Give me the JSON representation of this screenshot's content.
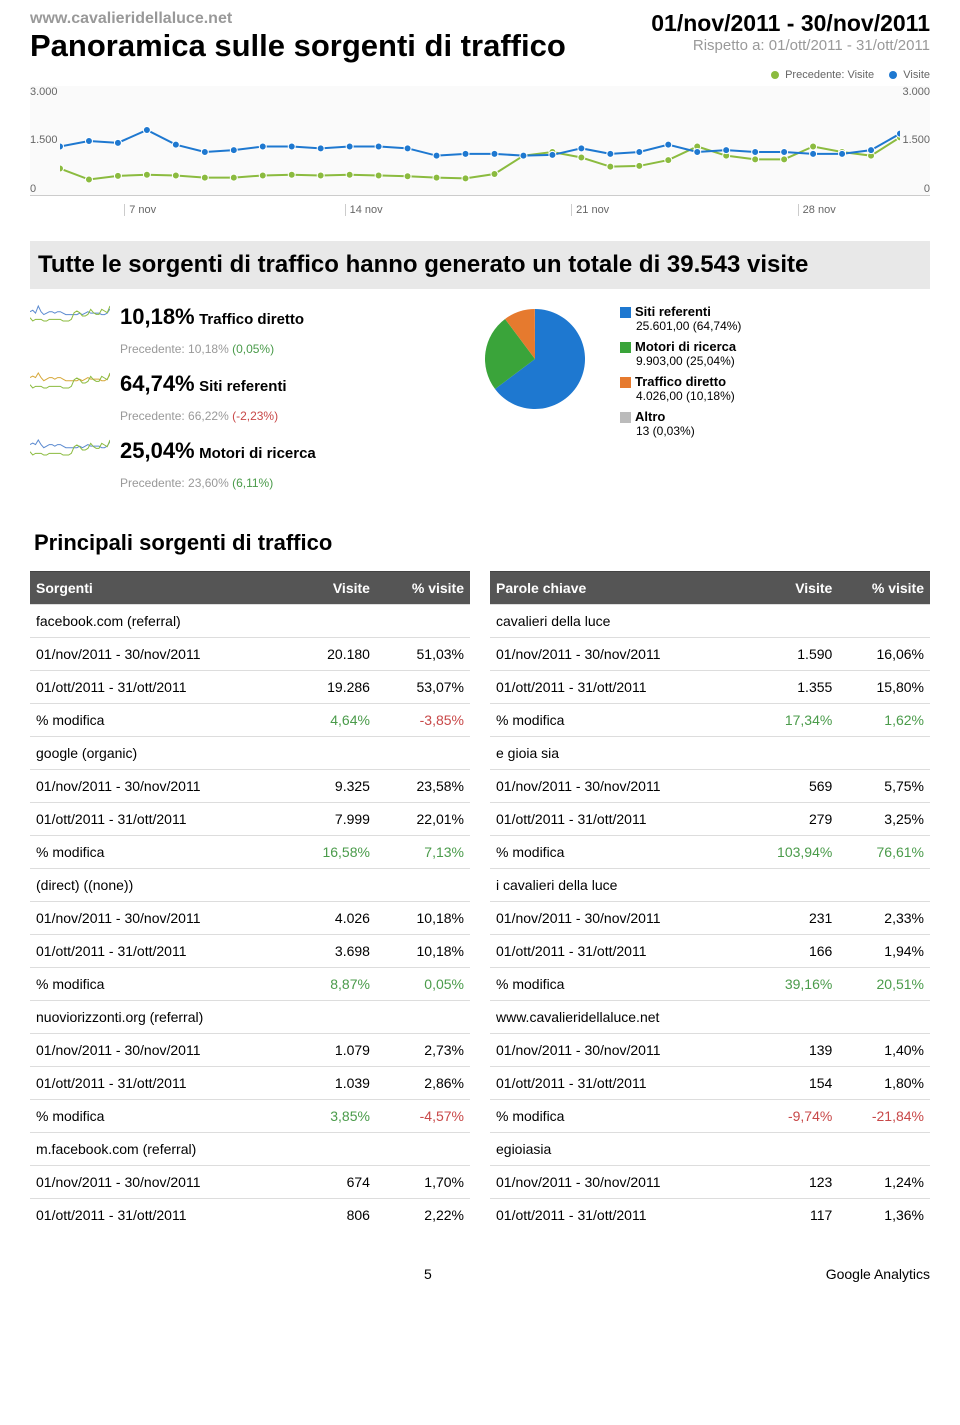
{
  "site_url": "www.cavalieridellaluce.net",
  "page_title": "Panoramica sulle sorgenti di traffico",
  "date_range": "01/nov/2011 - 30/nov/2011",
  "date_compare": "Rispetto a: 01/ott/2011 - 31/ott/2011",
  "top_legend": {
    "prev_label": "Precedente: Visite",
    "prev_color": "#8bbb3f",
    "curr_label": "Visite",
    "curr_color": "#1e78d0"
  },
  "line_chart": {
    "ylim": [
      0,
      3000
    ],
    "yticks": [
      "3.000",
      "1.500",
      "0"
    ],
    "xticks": [
      "7 nov",
      "14 nov",
      "21 nov",
      "28 nov"
    ],
    "bg": "#fafafa",
    "prev_color": "#8bbb3f",
    "curr_color": "#1e78d0",
    "marker_radius": 3.5,
    "prev_series": [
      750,
      450,
      550,
      580,
      560,
      500,
      500,
      560,
      580,
      560,
      580,
      560,
      540,
      500,
      480,
      600,
      1100,
      1200,
      1050,
      800,
      820,
      980,
      1350,
      1100,
      1000,
      1000,
      1350,
      1200,
      1100,
      1600
    ],
    "curr_series": [
      1350,
      1500,
      1450,
      1800,
      1400,
      1200,
      1250,
      1350,
      1350,
      1300,
      1350,
      1350,
      1300,
      1100,
      1150,
      1150,
      1100,
      1120,
      1300,
      1150,
      1200,
      1400,
      1200,
      1250,
      1200,
      1200,
      1150,
      1150,
      1250,
      1700
    ]
  },
  "summary_text": "Tutte le sorgenti di traffico hanno generato un totale di 39.543 visite",
  "kpis": [
    {
      "pct": "10,18%",
      "label": "Traffico diretto",
      "prev": "Precedente: 10,18% ",
      "delta": "(0,05%)",
      "delta_color": "#4a9b4a",
      "spark_a": "#5b8ad0",
      "spark_b": "#8bbb3f",
      "a": [
        10,
        11,
        9,
        14,
        10,
        8,
        9,
        10,
        10,
        9,
        10,
        10,
        9,
        8,
        8,
        8,
        8,
        8,
        9,
        8,
        9,
        10,
        9,
        9,
        9,
        9,
        8,
        8,
        9,
        12
      ],
      "b": [
        5,
        3,
        4,
        4,
        4,
        3,
        3,
        4,
        4,
        4,
        4,
        4,
        3,
        3,
        3,
        4,
        8,
        9,
        8,
        6,
        6,
        7,
        10,
        8,
        7,
        7,
        10,
        9,
        8,
        12
      ]
    },
    {
      "pct": "64,74%",
      "label": "Siti referenti",
      "prev": "Precedente: 66,22% ",
      "delta": "(-2,23%)",
      "delta_color": "#c84848",
      "spark_a": "#d6a83a",
      "spark_b": "#8bbb3f",
      "a": [
        10,
        11,
        10,
        13,
        10,
        8,
        9,
        10,
        10,
        9,
        10,
        10,
        9,
        8,
        8,
        8,
        8,
        8,
        9,
        8,
        9,
        10,
        9,
        9,
        9,
        9,
        8,
        8,
        9,
        12
      ],
      "b": [
        5,
        3,
        4,
        4,
        4,
        3,
        3,
        4,
        4,
        4,
        4,
        4,
        3,
        3,
        3,
        4,
        8,
        9,
        8,
        6,
        6,
        7,
        10,
        8,
        7,
        7,
        10,
        9,
        8,
        12
      ]
    },
    {
      "pct": "25,04%",
      "label": "Motori di ricerca",
      "prev": "Precedente: 23,60% ",
      "delta": "(6,11%)",
      "delta_color": "#4a9b4a",
      "spark_a": "#5b8ad0",
      "spark_b": "#8bbb3f",
      "a": [
        10,
        11,
        10,
        13,
        10,
        8,
        9,
        10,
        10,
        9,
        10,
        10,
        9,
        8,
        8,
        8,
        8,
        8,
        9,
        8,
        9,
        10,
        9,
        9,
        9,
        9,
        8,
        8,
        9,
        12
      ],
      "b": [
        5,
        3,
        4,
        4,
        4,
        3,
        3,
        4,
        4,
        4,
        4,
        4,
        3,
        3,
        3,
        4,
        8,
        9,
        8,
        6,
        6,
        7,
        10,
        8,
        7,
        7,
        10,
        9,
        8,
        12
      ]
    }
  ],
  "pie": {
    "slices": [
      {
        "label": "Siti referenti",
        "value": "25.601,00 (64,74%)",
        "color": "#1e78d0",
        "pct": 64.74
      },
      {
        "label": "Motori di ricerca",
        "value": "9.903,00 (25,04%)",
        "color": "#3aa43a",
        "pct": 25.04
      },
      {
        "label": "Traffico diretto",
        "value": "4.026,00 (10,18%)",
        "color": "#e67a2e",
        "pct": 10.18
      },
      {
        "label": "Altro",
        "value": "13 (0,03%)",
        "color": "#bbbbbb",
        "pct": 0.03
      }
    ]
  },
  "section_title": "Principali sorgenti di traffico",
  "table_left": {
    "headers": [
      "Sorgenti",
      "Visite",
      "% visite"
    ],
    "groups": [
      {
        "name": "facebook.com (referral)",
        "rows": [
          [
            "01/nov/2011 - 30/nov/2011",
            "20.180",
            "51,03%"
          ],
          [
            "01/ott/2011 - 31/ott/2011",
            "19.286",
            "53,07%"
          ]
        ],
        "mod": [
          "% modifica",
          "4,64%",
          "-3,85%"
        ],
        "mod_colors": [
          "",
          "green",
          "red"
        ]
      },
      {
        "name": "google (organic)",
        "rows": [
          [
            "01/nov/2011 - 30/nov/2011",
            "9.325",
            "23,58%"
          ],
          [
            "01/ott/2011 - 31/ott/2011",
            "7.999",
            "22,01%"
          ]
        ],
        "mod": [
          "% modifica",
          "16,58%",
          "7,13%"
        ],
        "mod_colors": [
          "",
          "green",
          "green"
        ]
      },
      {
        "name": "(direct) ((none))",
        "rows": [
          [
            "01/nov/2011 - 30/nov/2011",
            "4.026",
            "10,18%"
          ],
          [
            "01/ott/2011 - 31/ott/2011",
            "3.698",
            "10,18%"
          ]
        ],
        "mod": [
          "% modifica",
          "8,87%",
          "0,05%"
        ],
        "mod_colors": [
          "",
          "green",
          "green"
        ]
      },
      {
        "name": "nuoviorizzonti.org (referral)",
        "rows": [
          [
            "01/nov/2011 - 30/nov/2011",
            "1.079",
            "2,73%"
          ],
          [
            "01/ott/2011 - 31/ott/2011",
            "1.039",
            "2,86%"
          ]
        ],
        "mod": [
          "% modifica",
          "3,85%",
          "-4,57%"
        ],
        "mod_colors": [
          "",
          "green",
          "red"
        ]
      },
      {
        "name": "m.facebook.com (referral)",
        "rows": [
          [
            "01/nov/2011 - 30/nov/2011",
            "674",
            "1,70%"
          ],
          [
            "01/ott/2011 - 31/ott/2011",
            "806",
            "2,22%"
          ]
        ],
        "mod": null
      }
    ]
  },
  "table_right": {
    "headers": [
      "Parole chiave",
      "Visite",
      "% visite"
    ],
    "groups": [
      {
        "name": "cavalieri della luce",
        "rows": [
          [
            "01/nov/2011 - 30/nov/2011",
            "1.590",
            "16,06%"
          ],
          [
            "01/ott/2011 - 31/ott/2011",
            "1.355",
            "15,80%"
          ]
        ],
        "mod": [
          "% modifica",
          "17,34%",
          "1,62%"
        ],
        "mod_colors": [
          "",
          "green",
          "green"
        ]
      },
      {
        "name": "e gioia sia",
        "rows": [
          [
            "01/nov/2011 - 30/nov/2011",
            "569",
            "5,75%"
          ],
          [
            "01/ott/2011 - 31/ott/2011",
            "279",
            "3,25%"
          ]
        ],
        "mod": [
          "% modifica",
          "103,94%",
          "76,61%"
        ],
        "mod_colors": [
          "",
          "green",
          "green"
        ]
      },
      {
        "name": "i cavalieri della luce",
        "rows": [
          [
            "01/nov/2011 - 30/nov/2011",
            "231",
            "2,33%"
          ],
          [
            "01/ott/2011 - 31/ott/2011",
            "166",
            "1,94%"
          ]
        ],
        "mod": [
          "% modifica",
          "39,16%",
          "20,51%"
        ],
        "mod_colors": [
          "",
          "green",
          "green"
        ]
      },
      {
        "name": "www.cavalieridellaluce.net",
        "rows": [
          [
            "01/nov/2011 - 30/nov/2011",
            "139",
            "1,40%"
          ],
          [
            "01/ott/2011 - 31/ott/2011",
            "154",
            "1,80%"
          ]
        ],
        "mod": [
          "% modifica",
          "-9,74%",
          "-21,84%"
        ],
        "mod_colors": [
          "",
          "red",
          "red"
        ]
      },
      {
        "name": "egioiasia",
        "rows": [
          [
            "01/nov/2011 - 30/nov/2011",
            "123",
            "1,24%"
          ],
          [
            "01/ott/2011 - 31/ott/2011",
            "117",
            "1,36%"
          ]
        ],
        "mod": null
      }
    ]
  },
  "footer": {
    "page_num": "5",
    "brand": "Google Analytics"
  }
}
